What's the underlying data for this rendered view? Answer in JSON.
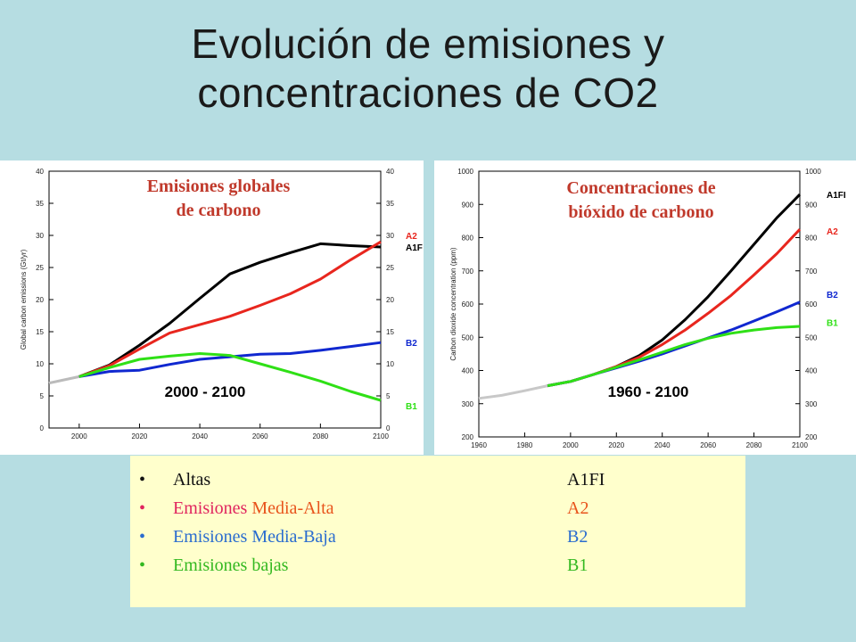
{
  "slide": {
    "title_line1": "Evolución de emisiones y",
    "title_line2": "concentraciones de CO2",
    "background": "#b6dde2"
  },
  "legend": {
    "background": "#ffffcc",
    "bullet": "•",
    "items": [
      {
        "label": "Altas",
        "code": "A1FI",
        "color": "#111111"
      },
      {
        "label_part1": "Emisiones ",
        "label_part2": "Media-Alta",
        "code": "A2",
        "color": "#e0245e",
        "color2": "#e8541c"
      },
      {
        "label": "Emisiones Media-Baja",
        "code": "B2",
        "color": "#2a6ccf"
      },
      {
        "label": "Emisiones bajas",
        "code": "B1",
        "color": "#33b820"
      }
    ]
  },
  "chart_data": [
    {
      "type": "line",
      "title_line1": "Emisiones globales",
      "title_line2": "de carbono",
      "title_color": "#c0392b",
      "ylabel": "Global carbon emissions (Gt/yr)",
      "period_label": "2000 - 2100",
      "xlim": [
        1990,
        2100
      ],
      "ylim": [
        0,
        40
      ],
      "x_ticks": [
        2000,
        2020,
        2040,
        2060,
        2080,
        2100
      ],
      "y_ticks": [
        0,
        5,
        10,
        15,
        20,
        25,
        30,
        35,
        40
      ],
      "grid": false,
      "series": [
        {
          "name": "historical",
          "color": "#bbbbbb",
          "x": [
            1990,
            2000
          ],
          "y": [
            7.0,
            8.0
          ]
        },
        {
          "name": "A1F",
          "color": "#000000",
          "x": [
            2000,
            2010,
            2020,
            2030,
            2040,
            2050,
            2060,
            2070,
            2080,
            2090,
            2100
          ],
          "y": [
            8.0,
            9.8,
            12.9,
            16.3,
            20.2,
            24.0,
            25.8,
            27.3,
            28.7,
            28.4,
            28.2
          ]
        },
        {
          "name": "A2",
          "color": "#e8261e",
          "x": [
            2000,
            2010,
            2020,
            2030,
            2040,
            2050,
            2060,
            2070,
            2080,
            2090,
            2100
          ],
          "y": [
            8.0,
            9.7,
            12.3,
            14.8,
            16.1,
            17.4,
            19.1,
            20.9,
            23.2,
            26.2,
            29.0
          ]
        },
        {
          "name": "B2",
          "color": "#1028d0",
          "x": [
            2000,
            2010,
            2020,
            2030,
            2040,
            2050,
            2060,
            2070,
            2080,
            2090,
            2100
          ],
          "y": [
            8.0,
            8.8,
            9.0,
            9.9,
            10.7,
            11.1,
            11.5,
            11.6,
            12.1,
            12.7,
            13.3
          ]
        },
        {
          "name": "B1",
          "color": "#2fe016",
          "x": [
            2000,
            2010,
            2020,
            2030,
            2040,
            2050,
            2060,
            2070,
            2080,
            2090,
            2100
          ],
          "y": [
            8.0,
            9.4,
            10.7,
            11.2,
            11.6,
            11.3,
            10.0,
            8.7,
            7.3,
            5.7,
            4.3
          ]
        }
      ],
      "end_labels": [
        {
          "text": "A2",
          "y": 30,
          "color": "#e8261e"
        },
        {
          "text": "A1F",
          "y": 28.2,
          "color": "#000000"
        },
        {
          "text": "B2",
          "y": 13.3,
          "color": "#1028d0"
        },
        {
          "text": "B1",
          "y": 3.5,
          "color": "#2fe016"
        }
      ]
    },
    {
      "type": "line",
      "title_line1": "Concentraciones de",
      "title_line2": "bióxido de carbono",
      "title_color": "#c0392b",
      "ylabel": "Carbon dioxide concentration (ppm)",
      "period_label": "1960 - 2100",
      "xlim": [
        1960,
        2100
      ],
      "ylim": [
        200,
        1000
      ],
      "x_ticks": [
        1960,
        1980,
        2000,
        2020,
        2040,
        2060,
        2080,
        2100
      ],
      "y_ticks": [
        200,
        300,
        400,
        500,
        600,
        700,
        800,
        900,
        1000
      ],
      "grid": false,
      "series": [
        {
          "name": "historical",
          "color": "#c8c8c8",
          "x": [
            1960,
            1970,
            1980,
            1990
          ],
          "y": [
            316,
            325,
            339,
            354
          ]
        },
        {
          "name": "A1FI",
          "color": "#000000",
          "x": [
            1990,
            2000,
            2010,
            2020,
            2030,
            2040,
            2050,
            2060,
            2070,
            2080,
            2090,
            2100
          ],
          "y": [
            354,
            367,
            388,
            412,
            445,
            492,
            553,
            622,
            700,
            780,
            860,
            930
          ]
        },
        {
          "name": "A2",
          "color": "#e8261e",
          "x": [
            1990,
            2000,
            2010,
            2020,
            2030,
            2040,
            2050,
            2060,
            2070,
            2080,
            2090,
            2100
          ],
          "y": [
            354,
            367,
            388,
            412,
            440,
            478,
            522,
            572,
            626,
            688,
            752,
            825
          ]
        },
        {
          "name": "B2",
          "color": "#1028d0",
          "x": [
            1990,
            2000,
            2010,
            2020,
            2030,
            2040,
            2050,
            2060,
            2070,
            2080,
            2090,
            2100
          ],
          "y": [
            354,
            367,
            388,
            408,
            428,
            450,
            474,
            498,
            522,
            549,
            577,
            606
          ]
        },
        {
          "name": "B1",
          "color": "#2fe016",
          "x": [
            1990,
            2000,
            2010,
            2020,
            2030,
            2040,
            2050,
            2060,
            2070,
            2080,
            2090,
            2100
          ],
          "y": [
            354,
            367,
            388,
            410,
            432,
            455,
            478,
            497,
            512,
            522,
            529,
            533
          ]
        }
      ],
      "end_labels": [
        {
          "text": "A1FI",
          "y": 930,
          "color": "#000000"
        },
        {
          "text": "A2",
          "y": 820,
          "color": "#e8261e"
        },
        {
          "text": "B2",
          "y": 630,
          "color": "#1028d0"
        },
        {
          "text": "B1",
          "y": 545,
          "color": "#2fe016"
        }
      ]
    }
  ]
}
